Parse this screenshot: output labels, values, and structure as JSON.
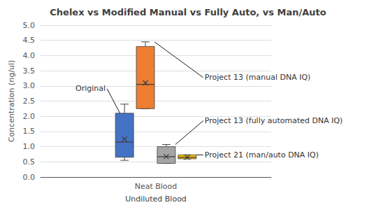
{
  "chart_data": {
    "type": "boxplot",
    "title": "Chelex vs Modified Manual vs Fully Auto, vs Man/Auto",
    "ylabel": "Concentration (ng/ul)",
    "xlabel": "Undiluted Blood",
    "categories": [
      "Neat Blood"
    ],
    "ylim": [
      0,
      5
    ],
    "yticks": [
      {
        "value": 0,
        "label": "0.0"
      },
      0.5,
      {
        "value": 1,
        "label": "1.0"
      },
      1.5,
      {
        "value": 2,
        "label": "2.0"
      },
      2.5,
      {
        "value": 3,
        "label": "3.0"
      },
      3.5,
      {
        "value": 4,
        "label": "4.0"
      },
      4.5,
      {
        "value": 5,
        "label": "5.0"
      }
    ],
    "grid": true,
    "series": [
      {
        "color": "#4472C4",
        "annotation": "Original",
        "values": [
          {
            "whisker_low": 0.55,
            "q1": 0.65,
            "median": 1.15,
            "q3": 2.1,
            "whisker_high": 2.4,
            "mean": 1.25
          }
        ]
      },
      {
        "color": "#ED7D31",
        "annotation": "Project 13 (manual DNA IQ)",
        "values": [
          {
            "whisker_low": 2.25,
            "q1": 2.25,
            "median": 3.05,
            "q3": 4.3,
            "whisker_high": 4.45,
            "mean": 3.1
          }
        ]
      },
      {
        "color": "#A5A5A5",
        "annotation": "Project 13 (fully automated DNA IQ)",
        "values": [
          {
            "whisker_low": 0.45,
            "q1": 0.45,
            "median": 0.67,
            "q3": 1.0,
            "whisker_high": 1.07,
            "mean": 0.67
          }
        ]
      },
      {
        "color": "#FFC000",
        "annotation": "Project 21 (man/auto DNA IQ)",
        "values": [
          {
            "whisker_low": 0.6,
            "q1": 0.6,
            "median": 0.65,
            "q3": 0.73,
            "whisker_high": 0.73,
            "mean": 0.65
          }
        ]
      }
    ]
  }
}
